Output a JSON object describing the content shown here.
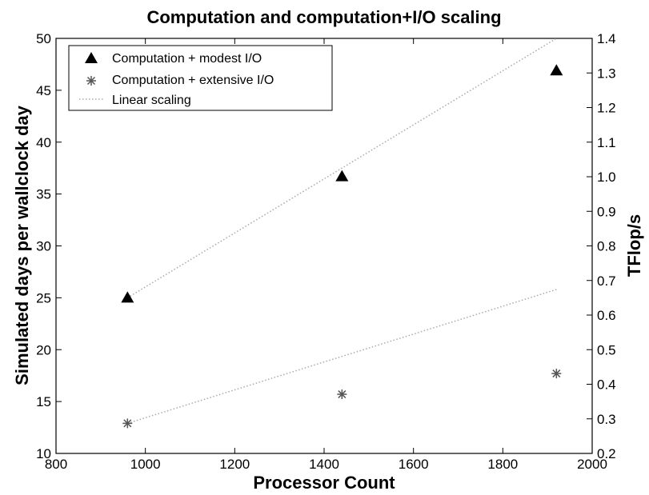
{
  "chart_data": {
    "type": "scatter",
    "title": "Computation and computation+I/O scaling",
    "xlabel": "Processor Count",
    "ylabel": "Simulated days per wallclock day",
    "y2label": "TFlop/s",
    "xlim": [
      800,
      2000
    ],
    "ylim": [
      10,
      50
    ],
    "y2lim": [
      0.2,
      1.4
    ],
    "x_ticks": [
      "800",
      "1000",
      "1200",
      "1400",
      "1600",
      "1800",
      "2000"
    ],
    "y_ticks": [
      "10",
      "15",
      "20",
      "25",
      "30",
      "35",
      "40",
      "45",
      "50"
    ],
    "y2_ticks": [
      "0.2",
      "0.3",
      "0.4",
      "0.5",
      "0.6",
      "0.7",
      "0.8",
      "0.9",
      "1.0",
      "1.1",
      "1.2",
      "1.3",
      "1.4"
    ],
    "grid": false,
    "legend_position": "top-left",
    "series": [
      {
        "name": "Computation + modest I/O",
        "marker": "triangle",
        "color": "#000000",
        "x": [
          960,
          1440,
          1920
        ],
        "y": [
          25,
          36.7,
          46.9
        ]
      },
      {
        "name": "Computation + extensive I/O",
        "marker": "asterisk",
        "color": "#555555",
        "x": [
          960,
          1440,
          1920
        ],
        "y": [
          12.9,
          15.7,
          17.7
        ]
      }
    ],
    "reference_lines": [
      {
        "name": "Linear scaling",
        "style": "dotted",
        "color": "#aaaaaa",
        "lines": [
          {
            "x": [
              960,
              1920
            ],
            "y": [
              25,
              50
            ]
          },
          {
            "x": [
              960,
              1920
            ],
            "y": [
              12.9,
              25.8
            ]
          }
        ]
      }
    ]
  }
}
